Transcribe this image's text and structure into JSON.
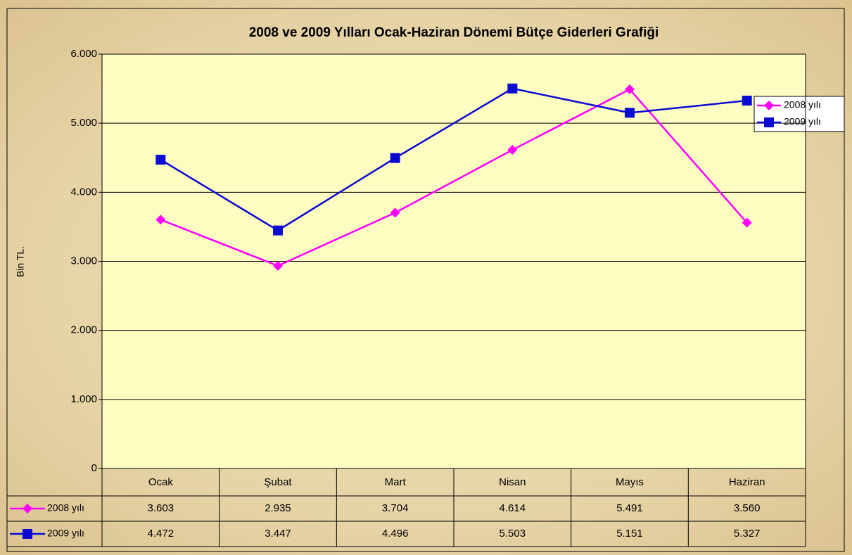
{
  "chart_data": {
    "type": "line",
    "title": "2008 ve 2009 Yılları Ocak-Haziran Dönemi Bütçe Giderleri Grafiği",
    "ylabel": "Bin TL.",
    "categories": [
      "Ocak",
      "Şubat",
      "Mart",
      "Nisan",
      "Mayıs",
      "Haziran"
    ],
    "series": [
      {
        "name": "2008 yılı",
        "color": "#ff00ff",
        "marker": "diamond",
        "values": [
          3603,
          2935,
          3704,
          4614,
          5491,
          3560
        ],
        "value_labels": [
          "3.603",
          "2.935",
          "3.704",
          "4.614",
          "5.491",
          "3.560"
        ]
      },
      {
        "name": "2009 yılı",
        "color": "#0a0ad2",
        "marker": "square",
        "values": [
          4472,
          3447,
          4496,
          5503,
          5151,
          5327
        ],
        "value_labels": [
          "4.472",
          "3.447",
          "4.496",
          "5.503",
          "5.151",
          "5.327"
        ]
      }
    ],
    "ylim": [
      0,
      6000
    ],
    "yticks": [
      0,
      {
        "value": 1000,
        "label": "1.000"
      },
      {
        "value": 2000,
        "label": "2.000"
      },
      {
        "value": 3000,
        "label": "3.000"
      },
      {
        "value": 4000,
        "label": "4.000"
      },
      {
        "value": 5000,
        "label": "5.000"
      },
      {
        "value": 6000,
        "label": "6.000"
      }
    ],
    "grid": true,
    "legend": "right"
  }
}
